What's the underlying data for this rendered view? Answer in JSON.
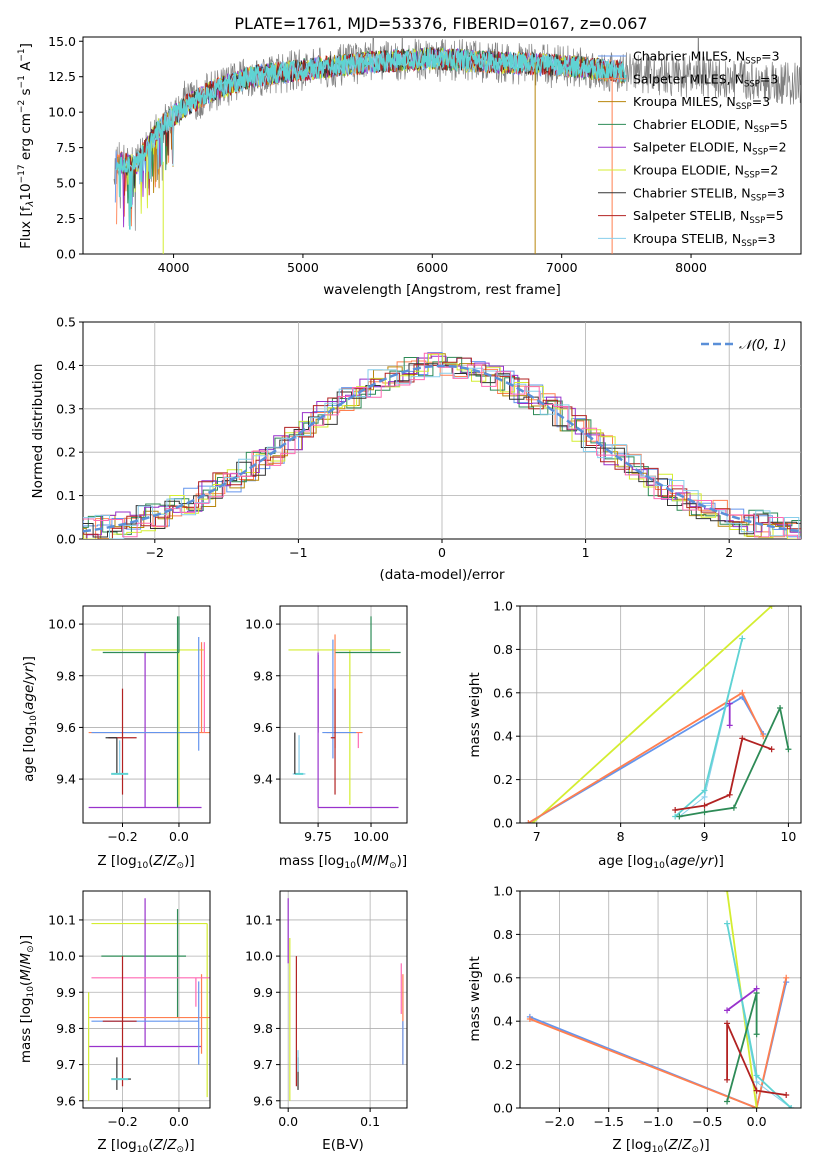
{
  "figure_title": "PLATE=1761, MJD=53376, FIBERID=0167, z=0.067",
  "colors": {
    "chabrier_miles": "#6495ed",
    "salpeter_miles": "#ff7f50",
    "kroupa_miles": "#b8860b",
    "chabrier_elodie": "#2e8b57",
    "salpeter_elodie": "#9932cc",
    "kroupa_elodie": "#d4ed31",
    "chabrier_stelib": "#333333",
    "salpeter_stelib": "#b22222",
    "kroupa_stelib": "#87ceeb",
    "pink": "#ff69b4",
    "cyan_thick": "#5fd3d3",
    "data_grey": "#808080",
    "gauss": "#5a8fd8"
  },
  "chart_data": [
    {
      "id": "spectrum",
      "type": "line",
      "title": "PLATE=1761, MJD=53376, FIBERID=0167, z=0.067",
      "xlabel": "wavelength [Angstrom, rest frame]",
      "ylabel": "Flux [f_λ 10^-17 erg cm^-2 s^-1 A^-1]",
      "xlim": [
        3300,
        8850
      ],
      "ylim": [
        0,
        15.3
      ],
      "xticks": [
        "4000",
        "5000",
        "6000",
        "7000",
        "8000"
      ],
      "yticks": [
        "0.0",
        "2.5",
        "5.0",
        "7.5",
        "10.0",
        "12.5",
        "15.0"
      ],
      "legend": [
        "Chabrier MILES, N_SSP=3",
        "Salpeter MILES, N_SSP=3",
        "Kroupa MILES, N_SSP=3",
        "Chabrier ELODIE, N_SSP=5",
        "Salpeter ELODIE, N_SSP=2",
        "Kroupa ELODIE, N_SSP=2",
        "Chabrier STELIB, N_SSP=3",
        "Salpeter STELIB, N_SSP=5",
        "Kroupa STELIB, N_SSP=3"
      ],
      "continuum": [
        [
          3550,
          6.5
        ],
        [
          3700,
          6.2
        ],
        [
          3900,
          9.0
        ],
        [
          4100,
          10.5
        ],
        [
          4300,
          11.5
        ],
        [
          4600,
          12.5
        ],
        [
          5000,
          13.0
        ],
        [
          5500,
          13.5
        ],
        [
          6000,
          13.8
        ],
        [
          6500,
          13.5
        ],
        [
          7000,
          13.3
        ],
        [
          7500,
          12.8
        ],
        [
          8000,
          12.5
        ],
        [
          8800,
          12.0
        ]
      ],
      "grid": false
    },
    {
      "id": "residuals",
      "type": "line",
      "xlabel": "(data-model)/error",
      "ylabel": "Normed distribution",
      "xlim": [
        -2.5,
        2.5
      ],
      "ylim": [
        0,
        0.5
      ],
      "xticks": [
        "−2",
        "−1",
        "0",
        "1",
        "2"
      ],
      "yticks": [
        "0.0",
        "0.1",
        "0.2",
        "0.3",
        "0.4",
        "0.5"
      ],
      "legend": [
        "N(0,1)"
      ],
      "grid": true
    },
    {
      "id": "age_vs_Z",
      "type": "scatter",
      "xlabel": "Z [log10(Z/Z☉)]",
      "ylabel": "age [log10(age/yr)]",
      "xlim": [
        -0.34,
        0.11
      ],
      "ylim": [
        9.23,
        10.07
      ],
      "xticks": [
        "−0.2",
        "0.0"
      ],
      "yticks": [
        "9.4",
        "9.6",
        "9.8",
        "10.0"
      ],
      "grid": true
    },
    {
      "id": "age_vs_mass",
      "type": "scatter",
      "xlabel": "mass [log10(M/M☉)]",
      "xlim": [
        9.57,
        10.17
      ],
      "ylim": [
        9.23,
        10.07
      ],
      "xticks": [
        "9.75",
        "10.00"
      ],
      "yticks": [
        "9.4",
        "9.6",
        "9.8",
        "10.0"
      ],
      "grid": true
    },
    {
      "id": "weight_vs_age",
      "type": "line",
      "xlabel": "age [log10(age/yr)]",
      "ylabel": "mass weight",
      "xlim": [
        6.8,
        10.15
      ],
      "ylim": [
        0,
        1.0
      ],
      "xticks": [
        "7",
        "8",
        "9",
        "10"
      ],
      "yticks": [
        "0.0",
        "0.2",
        "0.4",
        "0.6",
        "0.8",
        "1.0"
      ],
      "grid": true,
      "series": [
        {
          "key": "kroupa_elodie",
          "x": [
            6.95,
            9.8
          ],
          "y": [
            0.0,
            1.0
          ]
        },
        {
          "key": "chabrier_miles",
          "x": [
            6.9,
            9.45,
            9.7
          ],
          "y": [
            0.0,
            0.58,
            0.41
          ]
        },
        {
          "key": "salpeter_miles",
          "x": [
            6.9,
            9.45,
            9.7
          ],
          "y": [
            0.0,
            0.6,
            0.4
          ]
        },
        {
          "key": "kroupa_stelib",
          "x": [
            8.7,
            9.0,
            9.45
          ],
          "y": [
            0.03,
            0.12,
            0.85
          ]
        },
        {
          "key": "cyan_thick",
          "x": [
            8.65,
            9.0,
            9.45
          ],
          "y": [
            0.03,
            0.15,
            0.85
          ]
        },
        {
          "key": "chabrier_elodie",
          "x": [
            8.7,
            9.0,
            9.35,
            9.9,
            10.0
          ],
          "y": [
            0.03,
            0.05,
            0.07,
            0.53,
            0.34
          ]
        },
        {
          "key": "salpeter_stelib",
          "x": [
            8.65,
            9.0,
            9.3,
            9.45,
            9.8
          ],
          "y": [
            0.06,
            0.08,
            0.13,
            0.39,
            0.34
          ]
        },
        {
          "key": "salpeter_elodie",
          "x": [
            9.3,
            9.3
          ],
          "y": [
            0.45,
            0.55
          ]
        }
      ]
    },
    {
      "id": "mass_vs_Z",
      "type": "scatter",
      "xlabel": "Z [log10(Z/Z☉)]",
      "ylabel": "mass [log10(M/M☉)]",
      "xlim": [
        -0.34,
        0.11
      ],
      "ylim": [
        9.58,
        10.18
      ],
      "xticks": [
        "−0.2",
        "0.0"
      ],
      "yticks": [
        "9.6",
        "9.7",
        "9.8",
        "9.9",
        "10.0",
        "10.1"
      ],
      "grid": true
    },
    {
      "id": "mass_vs_ebv",
      "type": "scatter",
      "xlabel": "E(B-V)",
      "xlim": [
        -0.01,
        0.145
      ],
      "ylim": [
        9.58,
        10.18
      ],
      "xticks": [
        "0.0",
        "0.1"
      ],
      "yticks": [
        "9.6",
        "9.7",
        "9.8",
        "9.9",
        "10.0",
        "10.1"
      ],
      "grid": true
    },
    {
      "id": "weight_vs_Z",
      "type": "line",
      "xlabel": "Z [log10(Z/Z☉)]",
      "ylabel": "mass weight",
      "xlim": [
        -2.4,
        0.45
      ],
      "ylim": [
        0,
        1.0
      ],
      "xticks": [
        "−2.0",
        "−1.5",
        "−1.0",
        "−0.5",
        "0.0"
      ],
      "yticks": [
        "0.0",
        "0.2",
        "0.4",
        "0.6",
        "0.8",
        "1.0"
      ],
      "grid": true,
      "series": [
        {
          "key": "chabrier_miles",
          "x": [
            -2.3,
            0.0,
            0.3
          ],
          "y": [
            0.42,
            0.0,
            0.58
          ]
        },
        {
          "key": "salpeter_miles",
          "x": [
            -2.3,
            0.0,
            0.3
          ],
          "y": [
            0.41,
            0.0,
            0.6
          ]
        },
        {
          "key": "kroupa_elodie",
          "x": [
            -0.3,
            0.0
          ],
          "y": [
            1.0,
            0.0
          ]
        },
        {
          "key": "kroupa_stelib",
          "x": [
            -0.3,
            0.0,
            0.35
          ],
          "y": [
            0.85,
            0.12,
            0.0
          ]
        },
        {
          "key": "cyan_thick",
          "x": [
            -0.3,
            0.0,
            0.35
          ],
          "y": [
            0.85,
            0.15,
            0.0
          ]
        },
        {
          "key": "chabrier_elodie",
          "x": [
            -0.3,
            0.0,
            0.0
          ],
          "y": [
            0.03,
            0.53,
            0.34
          ]
        },
        {
          "key": "salpeter_stelib",
          "x": [
            -0.3,
            -0.3,
            0.0,
            0.3
          ],
          "y": [
            0.13,
            0.39,
            0.08,
            0.06
          ]
        },
        {
          "key": "salpeter_elodie",
          "x": [
            -0.3,
            0.0
          ],
          "y": [
            0.45,
            0.55
          ]
        }
      ]
    }
  ]
}
